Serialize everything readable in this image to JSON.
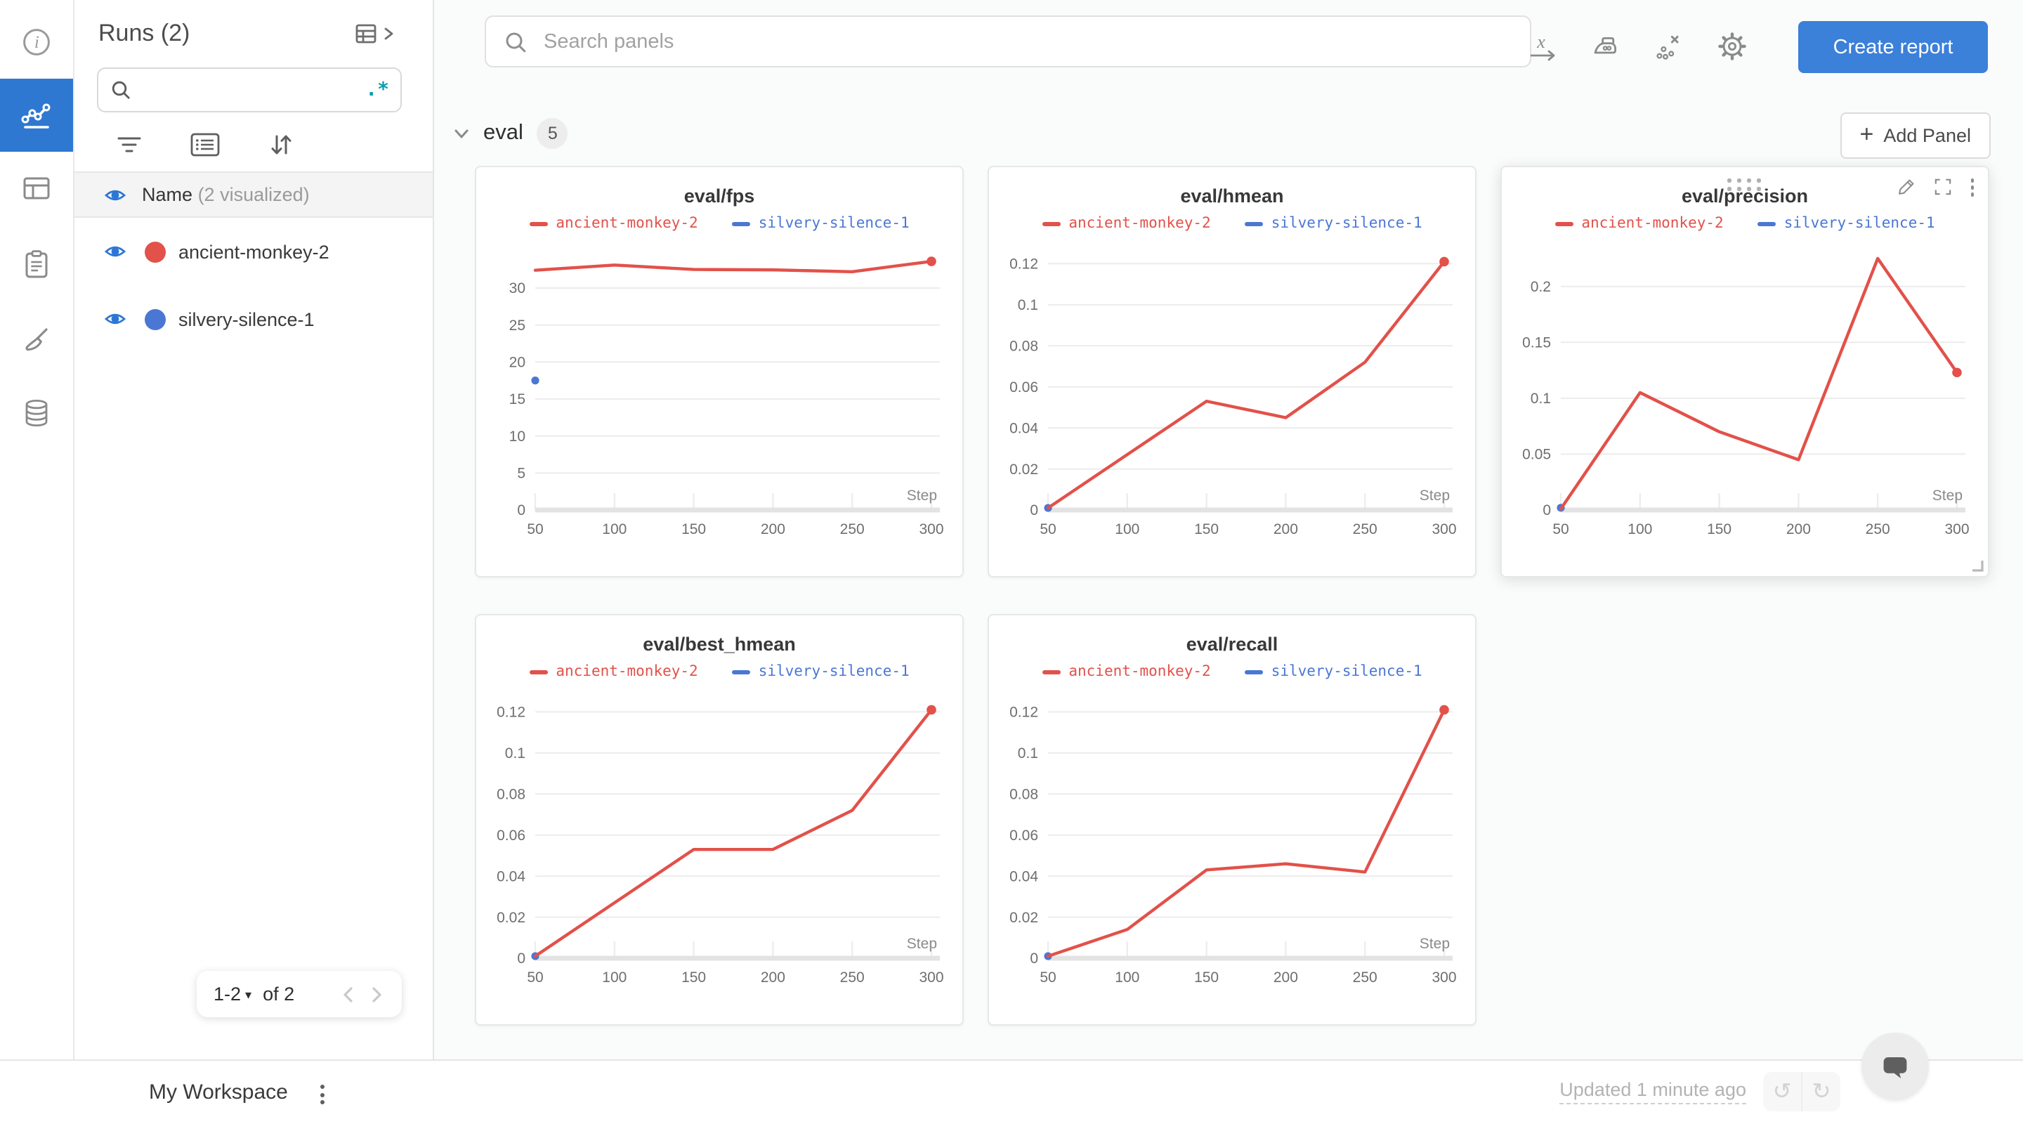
{
  "colors": {
    "accent_blue": "#2e78d2",
    "button_blue": "#3b80d9",
    "run_red": "#e2514a",
    "run_blue": "#4a77d4",
    "regex_teal": "#0b9eae"
  },
  "left_rail": {
    "items": [
      {
        "name": "info",
        "active": false
      },
      {
        "name": "line-chart-workspace",
        "active": true
      },
      {
        "name": "runs-table",
        "active": false
      },
      {
        "name": "logs-clipboard",
        "active": false
      },
      {
        "name": "sweeps-brush",
        "active": false
      },
      {
        "name": "artifacts-database",
        "active": false
      }
    ]
  },
  "sidebar": {
    "title": "Runs (2)",
    "search_value": "",
    "search_placeholder": "",
    "regex_label": ".*",
    "header": {
      "label": "Name",
      "sub": "(2 visualized)"
    },
    "runs": [
      {
        "name": "ancient-monkey-2",
        "color": "#e2514a",
        "visible": true
      },
      {
        "name": "silvery-silence-1",
        "color": "#4a77d4",
        "visible": true
      }
    ],
    "pagination": {
      "range": "1-2",
      "caret": "▾",
      "of_label": "of 2"
    }
  },
  "topbar": {
    "search_placeholder": "Search panels",
    "tools": [
      {
        "name": "x-axis-settings"
      },
      {
        "name": "smoothing-iron"
      },
      {
        "name": "outlier-removal"
      },
      {
        "name": "workspace-settings-gear"
      }
    ],
    "create_report_label": "Create report"
  },
  "section": {
    "label": "eval",
    "count": "5",
    "add_panel_label": "Add Panel",
    "add_plus": "+"
  },
  "bottombar": {
    "workspace_title": "My Workspace",
    "updated_text": "Updated 1 minute ago",
    "undo_glyph": "↺",
    "redo_glyph": "↻"
  },
  "chart_data": [
    {
      "type": "line",
      "title": "eval/fps",
      "x_label": "Step",
      "xlim": [
        50,
        300
      ],
      "ylim": [
        0,
        35.5
      ],
      "x_ticks": [
        50,
        100,
        150,
        200,
        250,
        300
      ],
      "y_ticks": [
        0,
        5,
        10,
        15,
        20,
        25,
        30
      ],
      "y_tick_labels": [
        "0",
        "5",
        "10",
        "15",
        "20",
        "25",
        "30"
      ],
      "hover_controls": false,
      "series": [
        {
          "name": "silvery-silence-1",
          "color": "#4a77d4",
          "x": [
            50
          ],
          "values": [
            17.5
          ],
          "end_dot": false
        },
        {
          "name": "ancient-monkey-2",
          "color": "#e2514a",
          "x": [
            50,
            100,
            150,
            200,
            250,
            300
          ],
          "values": [
            32.4,
            33.1,
            32.5,
            32.45,
            32.2,
            33.6
          ],
          "end_dot": true
        }
      ],
      "legend_order": [
        "ancient-monkey-2",
        "silvery-silence-1"
      ]
    },
    {
      "type": "line",
      "title": "eval/hmean",
      "x_label": "Step",
      "xlim": [
        50,
        300
      ],
      "ylim": [
        0,
        0.128
      ],
      "x_ticks": [
        50,
        100,
        150,
        200,
        250,
        300
      ],
      "y_ticks": [
        0,
        0.02,
        0.04,
        0.06,
        0.08,
        0.1,
        0.12
      ],
      "y_tick_labels": [
        "0",
        "0.02",
        "0.04",
        "0.06",
        "0.08",
        "0.1",
        "0.12"
      ],
      "hover_controls": false,
      "series": [
        {
          "name": "silvery-silence-1",
          "color": "#4a77d4",
          "x": [
            50
          ],
          "values": [
            0.001
          ],
          "end_dot": false
        },
        {
          "name": "ancient-monkey-2",
          "color": "#e2514a",
          "x": [
            50,
            100,
            150,
            200,
            250,
            300
          ],
          "values": [
            0.001,
            0.027,
            0.053,
            0.045,
            0.072,
            0.121
          ],
          "end_dot": true
        }
      ],
      "legend_order": [
        "ancient-monkey-2",
        "silvery-silence-1"
      ]
    },
    {
      "type": "line",
      "title": "eval/precision",
      "x_label": "Step",
      "xlim": [
        50,
        300
      ],
      "ylim": [
        0,
        0.235
      ],
      "x_ticks": [
        50,
        100,
        150,
        200,
        250,
        300
      ],
      "y_ticks": [
        0,
        0.05,
        0.1,
        0.15,
        0.2
      ],
      "y_tick_labels": [
        "0",
        "0.05",
        "0.1",
        "0.15",
        "0.2"
      ],
      "hover_controls": true,
      "series": [
        {
          "name": "silvery-silence-1",
          "color": "#4a77d4",
          "x": [
            50
          ],
          "values": [
            0.002
          ],
          "end_dot": false
        },
        {
          "name": "ancient-monkey-2",
          "color": "#e2514a",
          "x": [
            50,
            100,
            150,
            200,
            250,
            300
          ],
          "values": [
            0.001,
            0.105,
            0.07,
            0.045,
            0.225,
            0.123
          ],
          "end_dot": true
        }
      ],
      "legend_order": [
        "ancient-monkey-2",
        "silvery-silence-1"
      ]
    },
    {
      "type": "line",
      "title": "eval/best_hmean",
      "x_label": "Step",
      "xlim": [
        50,
        300
      ],
      "ylim": [
        0,
        0.128
      ],
      "x_ticks": [
        50,
        100,
        150,
        200,
        250,
        300
      ],
      "y_ticks": [
        0,
        0.02,
        0.04,
        0.06,
        0.08,
        0.1,
        0.12
      ],
      "y_tick_labels": [
        "0",
        "0.02",
        "0.04",
        "0.06",
        "0.08",
        "0.1",
        "0.12"
      ],
      "hover_controls": false,
      "series": [
        {
          "name": "silvery-silence-1",
          "color": "#4a77d4",
          "x": [
            50
          ],
          "values": [
            0.001
          ],
          "end_dot": false
        },
        {
          "name": "ancient-monkey-2",
          "color": "#e2514a",
          "x": [
            50,
            100,
            150,
            200,
            250,
            300
          ],
          "values": [
            0.001,
            0.027,
            0.053,
            0.053,
            0.072,
            0.121
          ],
          "end_dot": true
        }
      ],
      "legend_order": [
        "ancient-monkey-2",
        "silvery-silence-1"
      ]
    },
    {
      "type": "line",
      "title": "eval/recall",
      "x_label": "Step",
      "xlim": [
        50,
        300
      ],
      "ylim": [
        0,
        0.128
      ],
      "x_ticks": [
        50,
        100,
        150,
        200,
        250,
        300
      ],
      "y_ticks": [
        0,
        0.02,
        0.04,
        0.06,
        0.08,
        0.1,
        0.12
      ],
      "y_tick_labels": [
        "0",
        "0.02",
        "0.04",
        "0.06",
        "0.08",
        "0.1",
        "0.12"
      ],
      "hover_controls": false,
      "series": [
        {
          "name": "silvery-silence-1",
          "color": "#4a77d4",
          "x": [
            50
          ],
          "values": [
            0.001
          ],
          "end_dot": false
        },
        {
          "name": "ancient-monkey-2",
          "color": "#e2514a",
          "x": [
            50,
            100,
            150,
            200,
            250,
            300
          ],
          "values": [
            0.001,
            0.014,
            0.043,
            0.046,
            0.042,
            0.121
          ],
          "end_dot": true
        }
      ],
      "legend_order": [
        "ancient-monkey-2",
        "silvery-silence-1"
      ]
    }
  ]
}
